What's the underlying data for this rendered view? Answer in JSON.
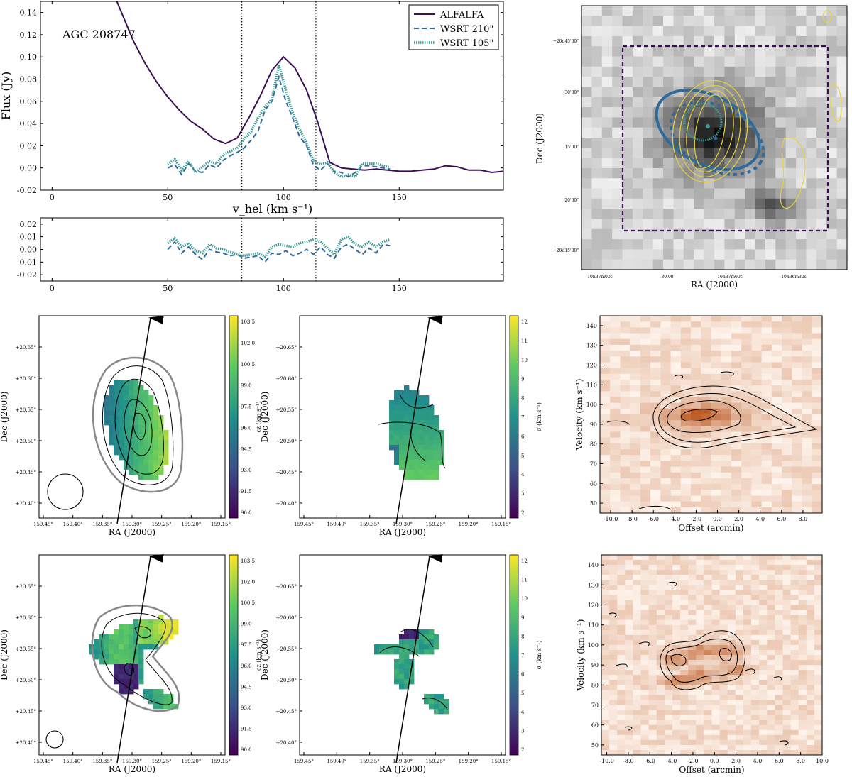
{
  "colors": {
    "alfalfa": "#3b0f55",
    "wsrt210": "#2f6a9b",
    "wsrt105": "#3a9a96",
    "box": "#3b0f55",
    "contour_yellow": "#e8d23a",
    "beam_blue": "#2f6a9b",
    "pv_dark": "#d45a18",
    "pv_light": "#fbe9db"
  },
  "chart_data": [
    {
      "id": "spectrum",
      "type": "line",
      "label": "AGC 208747",
      "xlabel": "v_hel (km s⁻¹)",
      "ylabel": "Flux (Jy)",
      "xlim": [
        -5,
        195
      ],
      "ylim": [
        -0.02,
        0.15
      ],
      "xticks": [
        "0",
        "50",
        "100",
        "150"
      ],
      "xtick_values": [
        0,
        50,
        100,
        150
      ],
      "yticks": [
        "-0.02",
        "0.00",
        "0.02",
        "0.04",
        "0.06",
        "0.08",
        "0.10",
        "0.12",
        "0.14"
      ],
      "ytick_values": [
        -0.02,
        0,
        0.02,
        0.04,
        0.06,
        0.08,
        0.1,
        0.12,
        0.14
      ],
      "vlines": [
        82,
        114
      ],
      "legend": [
        "ALFALFA",
        "WSRT 210\"",
        "WSRT 105\""
      ],
      "series": [
        {
          "name": "ALFALFA",
          "x": [
            28,
            35,
            40,
            45,
            50,
            55,
            60,
            65,
            70,
            75,
            80,
            85,
            90,
            95,
            100,
            105,
            110,
            115,
            120,
            125,
            130,
            135,
            140,
            145,
            150,
            155,
            160,
            165,
            170,
            175,
            180,
            185,
            190,
            195
          ],
          "y": [
            0.15,
            0.115,
            0.095,
            0.078,
            0.064,
            0.052,
            0.042,
            0.035,
            0.026,
            0.022,
            0.027,
            0.045,
            0.065,
            0.088,
            0.1,
            0.09,
            0.07,
            0.04,
            0.005,
            0.0,
            -0.001,
            -0.002,
            -0.001,
            -0.002,
            -0.003,
            -0.003,
            -0.002,
            -0.001,
            0.002,
            0.001,
            -0.002,
            -0.002,
            -0.004,
            -0.003
          ]
        },
        {
          "name": "WSRT 210\"",
          "x": [
            50,
            53,
            56,
            59,
            62,
            65,
            68,
            71,
            74,
            77,
            80,
            83,
            86,
            89,
            92,
            95,
            98,
            101,
            104,
            107,
            110,
            113,
            116,
            119,
            122,
            125,
            128,
            131,
            134,
            137,
            140,
            143,
            146
          ],
          "y": [
            0.0,
            0.003,
            -0.006,
            0.004,
            -0.003,
            -0.004,
            0.003,
            0.0,
            0.007,
            0.011,
            0.014,
            0.018,
            0.025,
            0.033,
            0.052,
            0.06,
            0.082,
            0.06,
            0.045,
            0.028,
            0.02,
            0.002,
            -0.002,
            0.004,
            -0.003,
            -0.004,
            -0.008,
            -0.004,
            0.002,
            0.002,
            0.001,
            0.0,
            -0.001
          ]
        },
        {
          "name": "WSRT 105\"",
          "x": [
            50,
            53,
            56,
            59,
            62,
            65,
            68,
            71,
            74,
            77,
            80,
            83,
            86,
            89,
            92,
            95,
            98,
            101,
            104,
            107,
            110,
            113,
            116,
            119,
            122,
            125,
            128,
            131,
            134,
            137,
            140,
            143,
            146
          ],
          "y": [
            0.003,
            0.008,
            -0.002,
            0.006,
            -0.004,
            0.001,
            0.006,
            0.004,
            0.012,
            0.015,
            0.018,
            0.026,
            0.033,
            0.045,
            0.055,
            0.062,
            0.093,
            0.07,
            0.05,
            0.035,
            0.022,
            0.006,
            0.003,
            0.005,
            -0.004,
            -0.008,
            -0.006,
            -0.008,
            0.004,
            0.004,
            0.004,
            0.002,
            0.0
          ]
        }
      ]
    },
    {
      "id": "residuals",
      "type": "line",
      "xlim": [
        -5,
        195
      ],
      "ylim": [
        -0.025,
        0.025
      ],
      "xticks": [
        "0",
        "50",
        "100",
        "150"
      ],
      "xtick_values": [
        0,
        50,
        100,
        150
      ],
      "yticks": [
        "-0.02",
        "-0.01",
        "0.00",
        "0.01",
        "0.02"
      ],
      "ytick_values": [
        -0.02,
        -0.01,
        0,
        0.01,
        0.02
      ],
      "vlines": [
        82,
        114
      ],
      "series": [
        {
          "name": "WSRT 210\"",
          "x": [
            50,
            53,
            56,
            59,
            62,
            65,
            68,
            71,
            74,
            77,
            80,
            83,
            86,
            89,
            92,
            95,
            98,
            101,
            104,
            107,
            110,
            113,
            116,
            119,
            122,
            125,
            128,
            131,
            134,
            137,
            140,
            143,
            146
          ],
          "y": [
            0.0,
            0.006,
            -0.003,
            0.002,
            -0.004,
            -0.008,
            0.0,
            -0.002,
            -0.003,
            -0.005,
            -0.004,
            -0.007,
            -0.006,
            -0.005,
            -0.01,
            -0.003,
            -0.004,
            -0.001,
            -0.005,
            -0.003,
            0.0,
            -0.004,
            0.002,
            -0.004,
            -0.007,
            0.002,
            0.004,
            0.0,
            -0.004,
            0.001,
            -0.003,
            0.004,
            0.003
          ]
        },
        {
          "name": "WSRT 105\"",
          "x": [
            50,
            53,
            56,
            59,
            62,
            65,
            68,
            71,
            74,
            77,
            80,
            83,
            86,
            89,
            92,
            95,
            98,
            101,
            104,
            107,
            110,
            113,
            116,
            119,
            122,
            125,
            128,
            131,
            134,
            137,
            140,
            143,
            146
          ],
          "y": [
            0.005,
            0.009,
            0.002,
            0.005,
            -0.001,
            -0.003,
            0.004,
            0.001,
            0.0,
            -0.002,
            -0.004,
            -0.005,
            -0.004,
            -0.003,
            -0.006,
            0.002,
            0.004,
            0.003,
            0.002,
            0.005,
            0.006,
            0.008,
            0.006,
            0.001,
            -0.004,
            0.008,
            0.01,
            0.004,
            0.002,
            0.006,
            0.002,
            0.006,
            0.008
          ]
        }
      ]
    },
    {
      "id": "optical_image",
      "type": "heatmap",
      "xlabel": "RA (J2000)",
      "ylabel": "Dec (J2000)",
      "xticks": [
        "10h37m00s",
        "30.00",
        "10h37m00s",
        "10h36m30s"
      ],
      "yticks": [
        "+20d45'00\"",
        "30'00\"",
        "15'00\"",
        "20'00\"",
        "+20d15'00\""
      ]
    },
    {
      "id": "velocity_210",
      "type": "heatmap",
      "xlabel": "RA (J2000)",
      "ylabel": "Dec (J2000)",
      "cbar_label": "cz (km s⁻¹)",
      "xticks": [
        "159.45°",
        "159.40°",
        "159.35°",
        "159.30°",
        "159.25°",
        "159.20°",
        "159.15°"
      ],
      "yticks": [
        "+20.65°",
        "+20.60°",
        "+20.55°",
        "+20.50°",
        "+20.45°",
        "+20.40°"
      ],
      "cbar_ticks": [
        "103.5",
        "102.0",
        "100.5",
        "99.0",
        "97.5",
        "96.0",
        "94.5",
        "93.0",
        "91.5",
        "90.0"
      ],
      "vrange": [
        90,
        103.5
      ]
    },
    {
      "id": "dispersion_210",
      "type": "heatmap",
      "xlabel": "RA (J2000)",
      "ylabel": "Dec (J2000)",
      "cbar_label": "σ (km s⁻¹)",
      "xticks": [
        "159.45°",
        "159.40°",
        "159.35°",
        "159.30°",
        "159.25°",
        "159.20°",
        "159.15°"
      ],
      "yticks": [
        "+20.65°",
        "+20.60°",
        "+20.55°",
        "+20.50°",
        "+20.45°",
        "+20.40°"
      ],
      "cbar_ticks": [
        "12",
        "11",
        "10",
        "9",
        "8",
        "7",
        "6",
        "5",
        "4",
        "3",
        "2"
      ],
      "vrange": [
        2,
        12
      ]
    },
    {
      "id": "pv_210",
      "type": "heatmap",
      "xlabel": "Offset (arcmin)",
      "ylabel": "Velocity (km s⁻¹)",
      "xticks": [
        "-10.0",
        "-8.0",
        "-6.0",
        "-4.0",
        "-2.0",
        "0.0",
        "2.0",
        "4.0",
        "6.0",
        "8.0"
      ],
      "xtick_values": [
        -10,
        -8,
        -6,
        -4,
        -2,
        0,
        2,
        4,
        6,
        8
      ],
      "xlim": [
        -11,
        9.8
      ],
      "yticks": [
        "140",
        "130",
        "120",
        "110",
        "100",
        "90",
        "80",
        "70",
        "60",
        "50"
      ],
      "ytick_values": [
        140,
        130,
        120,
        110,
        100,
        90,
        80,
        70,
        60,
        50
      ],
      "ylim": [
        45,
        145
      ]
    },
    {
      "id": "velocity_105",
      "type": "heatmap",
      "xlabel": "RA (J2000)",
      "ylabel": "Dec (J2000)",
      "cbar_label": "cz (km s⁻¹)",
      "xticks": [
        "159.45°",
        "159.40°",
        "159.35°",
        "159.30°",
        "159.25°",
        "159.20°",
        "159.15°"
      ],
      "yticks": [
        "+20.65°",
        "+20.60°",
        "+20.55°",
        "+20.50°",
        "+20.45°",
        "+20.40°"
      ],
      "cbar_ticks": [
        "103.5",
        "102.0",
        "100.5",
        "99.0",
        "97.5",
        "96.0",
        "94.5",
        "93.0",
        "91.5",
        "90.0"
      ],
      "vrange": [
        90,
        103.5
      ]
    },
    {
      "id": "dispersion_105",
      "type": "heatmap",
      "xlabel": "RA (J2000)",
      "ylabel": "Dec (J2000)",
      "cbar_label": "σ (km s⁻¹)",
      "xticks": [
        "159.45°",
        "159.40°",
        "159.35°",
        "159.30°",
        "159.25°",
        "159.20°",
        "159.15°"
      ],
      "yticks": [
        "+20.65°",
        "+20.60°",
        "+20.55°",
        "+20.50°",
        "+20.45°",
        "+20.40°"
      ],
      "cbar_ticks": [
        "12",
        "11",
        "10",
        "9",
        "8",
        "7",
        "6",
        "5",
        "4",
        "3",
        "2"
      ],
      "vrange": [
        2,
        12
      ]
    },
    {
      "id": "pv_105",
      "type": "heatmap",
      "xlabel": "Offset (arcmin)",
      "ylabel": "Velocity (km s⁻¹)",
      "xticks": [
        "-10.0",
        "-8.0",
        "-6.0",
        "-4.0",
        "-2.0",
        "0.0",
        "2.0",
        "4.0",
        "6.0",
        "8.0",
        "10.0"
      ],
      "xtick_values": [
        -10,
        -8,
        -6,
        -4,
        -2,
        0,
        2,
        4,
        6,
        8,
        10
      ],
      "xlim": [
        -10.5,
        10
      ],
      "yticks": [
        "140",
        "130",
        "120",
        "110",
        "100",
        "90",
        "80",
        "70",
        "60",
        "50"
      ],
      "ytick_values": [
        140,
        130,
        120,
        110,
        100,
        90,
        80,
        70,
        60,
        50
      ],
      "ylim": [
        45,
        145
      ]
    }
  ]
}
